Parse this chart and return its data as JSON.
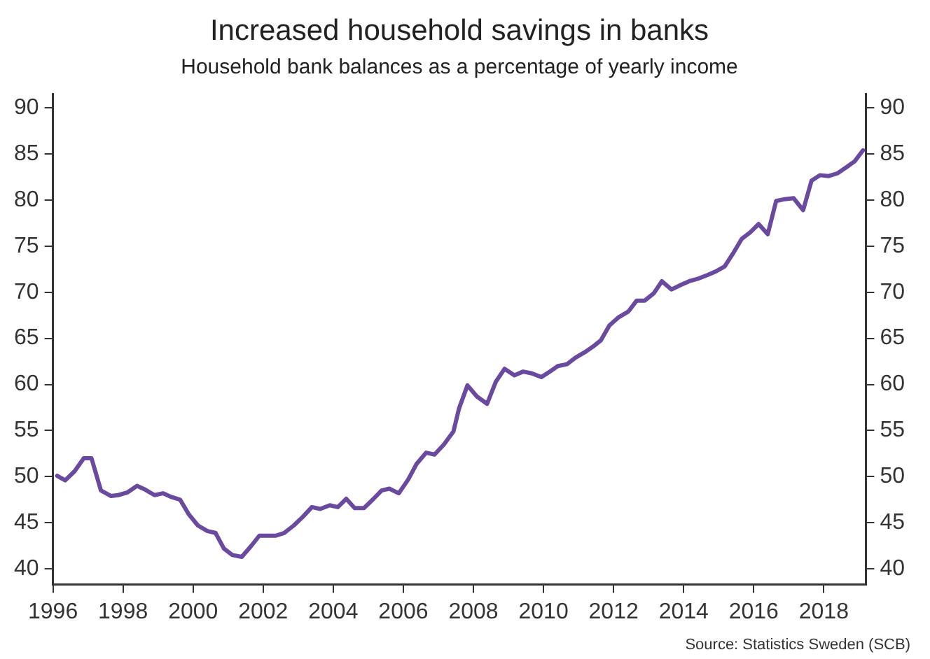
{
  "chart_data": {
    "type": "line",
    "title": "Increased household savings in banks",
    "subtitle": "Household bank balances as a percentage of yearly income",
    "annotations": [
      "Source: Statistics Sweden (SCB)"
    ],
    "x": [
      1996.12,
      1996.35,
      1996.62,
      1996.88,
      1997.1,
      1997.37,
      1997.66,
      1997.86,
      1998.13,
      1998.4,
      1998.63,
      1998.9,
      1999.14,
      1999.38,
      1999.63,
      1999.88,
      2000.14,
      2000.41,
      2000.64,
      2000.88,
      2001.12,
      2001.39,
      2001.66,
      2001.89,
      2002.16,
      2002.36,
      2002.6,
      2002.87,
      2003.12,
      2003.39,
      2003.63,
      2003.9,
      2004.13,
      2004.37,
      2004.61,
      2004.88,
      2005.15,
      2005.38,
      2005.6,
      2005.87,
      2006.14,
      2006.38,
      2006.65,
      2006.89,
      2007.16,
      2007.43,
      2007.59,
      2007.83,
      2008.1,
      2008.39,
      2008.64,
      2008.89,
      2009.17,
      2009.42,
      2009.67,
      2009.94,
      2010.18,
      2010.41,
      2010.67,
      2010.91,
      2011.18,
      2011.41,
      2011.64,
      2011.88,
      2012.15,
      2012.42,
      2012.66,
      2012.89,
      2013.15,
      2013.38,
      2013.65,
      2013.92,
      2014.16,
      2014.43,
      2014.7,
      2014.94,
      2015.17,
      2015.44,
      2015.66,
      2015.9,
      2016.14,
      2016.4,
      2016.64,
      2016.89,
      2017.14,
      2017.41,
      2017.65,
      2017.89,
      2018.14,
      2018.39,
      2018.66,
      2018.88,
      2019.12
    ],
    "series": [
      {
        "color": "#6a4a9e",
        "values": [
          50.1,
          49.6,
          50.6,
          52.0,
          52.0,
          48.5,
          47.9,
          48.0,
          48.3,
          49.0,
          48.6,
          48.0,
          48.2,
          47.8,
          47.5,
          45.9,
          44.7,
          44.1,
          43.9,
          42.2,
          41.5,
          41.3,
          42.5,
          43.6,
          43.6,
          43.6,
          43.9,
          44.7,
          45.6,
          46.7,
          46.5,
          46.9,
          46.7,
          47.6,
          46.6,
          46.6,
          47.6,
          48.5,
          48.7,
          48.2,
          49.7,
          51.4,
          52.6,
          52.4,
          53.5,
          54.9,
          57.4,
          59.9,
          58.7,
          57.9,
          60.3,
          61.7,
          61.0,
          61.4,
          61.2,
          60.8,
          61.4,
          62.0,
          62.2,
          62.9,
          63.5,
          64.1,
          64.8,
          66.4,
          67.3,
          67.9,
          69.1,
          69.1,
          69.9,
          71.2,
          70.3,
          70.8,
          71.2,
          71.5,
          71.9,
          72.3,
          72.8,
          74.4,
          75.8,
          76.5,
          77.4,
          76.3,
          79.9,
          80.1,
          80.2,
          78.9,
          82.1,
          82.7,
          82.6,
          82.9,
          83.6,
          84.2,
          85.4
        ]
      }
    ],
    "xlim": [
      1996,
      2019.2
    ],
    "xticks": [
      1996,
      1998,
      2000,
      2002,
      2004,
      2006,
      2008,
      2010,
      2012,
      2014,
      2016,
      2018
    ],
    "ylim": [
      38.3,
      91.5
    ],
    "yticks": [
      40,
      45,
      50,
      55,
      60,
      65,
      70,
      75,
      80,
      85,
      90
    ],
    "y2lim": [
      38.3,
      91.5
    ],
    "y2ticks": [
      40,
      45,
      50,
      55,
      60,
      65,
      70,
      75,
      80,
      85,
      90
    ],
    "grid": false,
    "legend": false,
    "marker": "none",
    "line_style": "solid"
  }
}
